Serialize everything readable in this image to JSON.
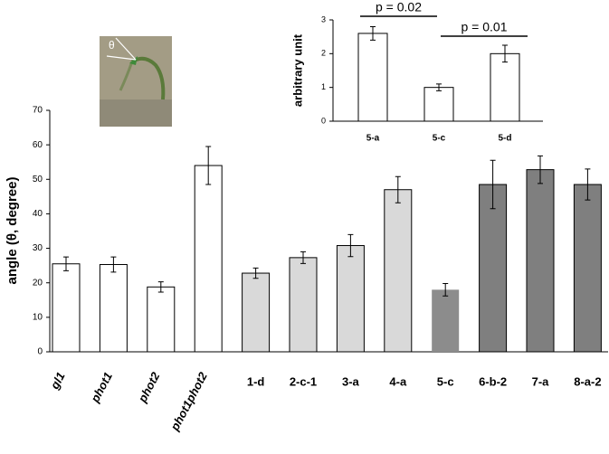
{
  "chart_data": [
    {
      "type": "bar",
      "y_label": "angle (θ, degree)",
      "image_label": "θ",
      "categories": [
        "gl1",
        "phot1",
        "phot2",
        "phot1phot2",
        "1-d",
        "2-c-1",
        "3-a",
        "4-a",
        "5-c",
        "6-b-2",
        "7-a",
        "8-a-2"
      ],
      "italic_categories": [
        true,
        true,
        true,
        true,
        false,
        false,
        false,
        false,
        false,
        false,
        false,
        false
      ],
      "values": [
        25.5,
        25.3,
        18.8,
        54,
        22.8,
        27.3,
        30.8,
        47,
        18,
        48.5,
        52.8,
        48.5
      ],
      "errors": [
        2,
        2.2,
        1.5,
        5.5,
        1.5,
        1.7,
        3.2,
        3.8,
        1.8,
        7,
        4,
        4.5
      ],
      "colors": [
        "#ffffff",
        "#ffffff",
        "#ffffff",
        "#ffffff",
        "#d9d9d9",
        "#d9d9d9",
        "#d9d9d9",
        "#d9d9d9",
        "#8c8c8c",
        "#7f7f7f",
        "#7f7f7f",
        "#7f7f7f"
      ],
      "ylim": [
        0,
        70
      ],
      "yticks": [
        0,
        10,
        20,
        30,
        40,
        50,
        60,
        70
      ]
    },
    {
      "type": "bar",
      "y_label": "arbitrary unit",
      "categories": [
        "5-a",
        "5-c",
        "5-d"
      ],
      "values": [
        2.6,
        1.0,
        2.0
      ],
      "errors": [
        0.2,
        0.1,
        0.25
      ],
      "colors": [
        "#ffffff",
        "#ffffff",
        "#ffffff"
      ],
      "ylim": [
        0,
        3
      ],
      "yticks": [
        0,
        1,
        2,
        3
      ],
      "annotations": [
        "p = 0.02",
        "p = 0.01"
      ]
    }
  ]
}
